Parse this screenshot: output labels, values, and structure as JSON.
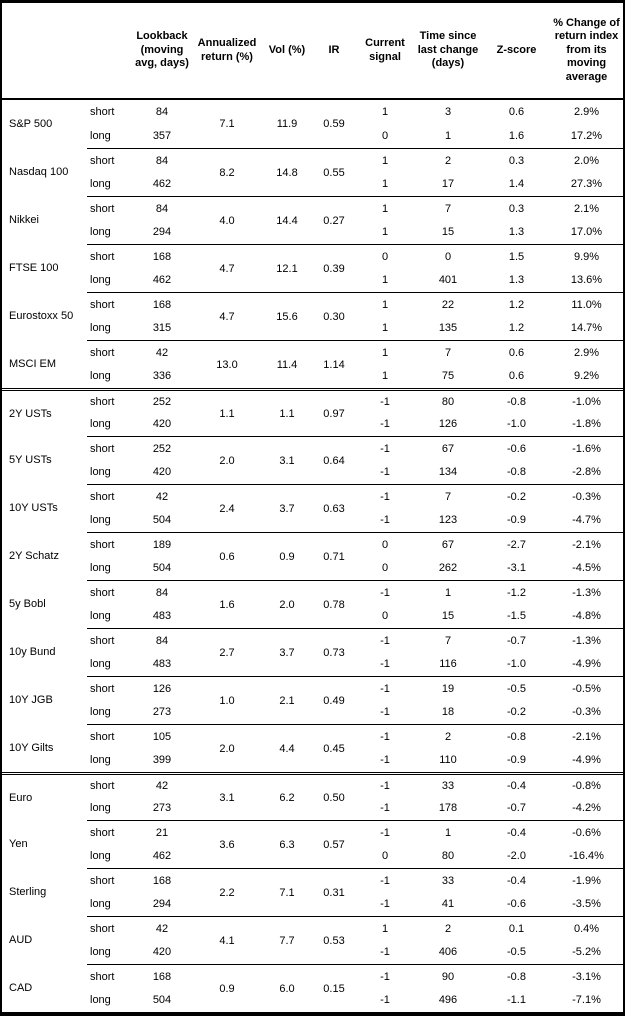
{
  "header": {
    "asset": "",
    "horizon": "",
    "lookback": "Lookback (moving avg, days)",
    "annualized_return": "Annualized return (%)",
    "vol": "Vol (%)",
    "ir": "IR",
    "current_signal": "Current signal",
    "time_since": "Time since last change (days)",
    "zscore": "Z-score",
    "pct_change": "% Change of return index from its moving average"
  },
  "sections": [
    {
      "id": "equities",
      "groups": [
        {
          "asset": "S&P 500",
          "annualized_return": "7.1",
          "vol": "11.9",
          "ir": "0.59",
          "rows": [
            {
              "horizon": "short",
              "lookback": "84",
              "signal": "1",
              "time_since": "3",
              "zscore": "0.6",
              "pct_change": "2.9%"
            },
            {
              "horizon": "long",
              "lookback": "357",
              "signal": "0",
              "time_since": "1",
              "zscore": "1.6",
              "pct_change": "17.2%"
            }
          ]
        },
        {
          "asset": "Nasdaq 100",
          "annualized_return": "8.2",
          "vol": "14.8",
          "ir": "0.55",
          "rows": [
            {
              "horizon": "short",
              "lookback": "84",
              "signal": "1",
              "time_since": "2",
              "zscore": "0.3",
              "pct_change": "2.0%"
            },
            {
              "horizon": "long",
              "lookback": "462",
              "signal": "1",
              "time_since": "17",
              "zscore": "1.4",
              "pct_change": "27.3%"
            }
          ]
        },
        {
          "asset": "Nikkei",
          "annualized_return": "4.0",
          "vol": "14.4",
          "ir": "0.27",
          "rows": [
            {
              "horizon": "short",
              "lookback": "84",
              "signal": "1",
              "time_since": "7",
              "zscore": "0.3",
              "pct_change": "2.1%"
            },
            {
              "horizon": "long",
              "lookback": "294",
              "signal": "1",
              "time_since": "15",
              "zscore": "1.3",
              "pct_change": "17.0%"
            }
          ]
        },
        {
          "asset": "FTSE 100",
          "annualized_return": "4.7",
          "vol": "12.1",
          "ir": "0.39",
          "rows": [
            {
              "horizon": "short",
              "lookback": "168",
              "signal": "0",
              "time_since": "0",
              "zscore": "1.5",
              "pct_change": "9.9%"
            },
            {
              "horizon": "long",
              "lookback": "462",
              "signal": "1",
              "time_since": "401",
              "zscore": "1.3",
              "pct_change": "13.6%"
            }
          ]
        },
        {
          "asset": "Eurostoxx 50",
          "annualized_return": "4.7",
          "vol": "15.6",
          "ir": "0.30",
          "rows": [
            {
              "horizon": "short",
              "lookback": "168",
              "signal": "1",
              "time_since": "22",
              "zscore": "1.2",
              "pct_change": "11.0%"
            },
            {
              "horizon": "long",
              "lookback": "315",
              "signal": "1",
              "time_since": "135",
              "zscore": "1.2",
              "pct_change": "14.7%"
            }
          ]
        },
        {
          "asset": "MSCI EM",
          "annualized_return": "13.0",
          "vol": "11.4",
          "ir": "1.14",
          "rows": [
            {
              "horizon": "short",
              "lookback": "42",
              "signal": "1",
              "time_since": "7",
              "zscore": "0.6",
              "pct_change": "2.9%"
            },
            {
              "horizon": "long",
              "lookback": "336",
              "signal": "1",
              "time_since": "75",
              "zscore": "0.6",
              "pct_change": "9.2%"
            }
          ]
        }
      ]
    },
    {
      "id": "rates",
      "groups": [
        {
          "asset": "2Y USTs",
          "annualized_return": "1.1",
          "vol": "1.1",
          "ir": "0.97",
          "rows": [
            {
              "horizon": "short",
              "lookback": "252",
              "signal": "-1",
              "time_since": "80",
              "zscore": "-0.8",
              "pct_change": "-1.0%"
            },
            {
              "horizon": "long",
              "lookback": "420",
              "signal": "-1",
              "time_since": "126",
              "zscore": "-1.0",
              "pct_change": "-1.8%"
            }
          ]
        },
        {
          "asset": "5Y USTs",
          "annualized_return": "2.0",
          "vol": "3.1",
          "ir": "0.64",
          "rows": [
            {
              "horizon": "short",
              "lookback": "252",
              "signal": "-1",
              "time_since": "67",
              "zscore": "-0.6",
              "pct_change": "-1.6%"
            },
            {
              "horizon": "long",
              "lookback": "420",
              "signal": "-1",
              "time_since": "134",
              "zscore": "-0.8",
              "pct_change": "-2.8%"
            }
          ]
        },
        {
          "asset": "10Y USTs",
          "annualized_return": "2.4",
          "vol": "3.7",
          "ir": "0.63",
          "rows": [
            {
              "horizon": "short",
              "lookback": "42",
              "signal": "-1",
              "time_since": "7",
              "zscore": "-0.2",
              "pct_change": "-0.3%"
            },
            {
              "horizon": "long",
              "lookback": "504",
              "signal": "-1",
              "time_since": "123",
              "zscore": "-0.9",
              "pct_change": "-4.7%"
            }
          ]
        },
        {
          "asset": "2Y Schatz",
          "annualized_return": "0.6",
          "vol": "0.9",
          "ir": "0.71",
          "rows": [
            {
              "horizon": "short",
              "lookback": "189",
              "signal": "0",
              "time_since": "67",
              "zscore": "-2.7",
              "pct_change": "-2.1%"
            },
            {
              "horizon": "long",
              "lookback": "504",
              "signal": "0",
              "time_since": "262",
              "zscore": "-3.1",
              "pct_change": "-4.5%"
            }
          ]
        },
        {
          "asset": "5y Bobl",
          "annualized_return": "1.6",
          "vol": "2.0",
          "ir": "0.78",
          "rows": [
            {
              "horizon": "short",
              "lookback": "84",
              "signal": "-1",
              "time_since": "1",
              "zscore": "-1.2",
              "pct_change": "-1.3%"
            },
            {
              "horizon": "long",
              "lookback": "483",
              "signal": "0",
              "time_since": "15",
              "zscore": "-1.5",
              "pct_change": "-4.8%"
            }
          ]
        },
        {
          "asset": "10y Bund",
          "annualized_return": "2.7",
          "vol": "3.7",
          "ir": "0.73",
          "rows": [
            {
              "horizon": "short",
              "lookback": "84",
              "signal": "-1",
              "time_since": "7",
              "zscore": "-0.7",
              "pct_change": "-1.3%"
            },
            {
              "horizon": "long",
              "lookback": "483",
              "signal": "-1",
              "time_since": "116",
              "zscore": "-1.0",
              "pct_change": "-4.9%"
            }
          ]
        },
        {
          "asset": "10Y JGB",
          "annualized_return": "1.0",
          "vol": "2.1",
          "ir": "0.49",
          "rows": [
            {
              "horizon": "short",
              "lookback": "126",
              "signal": "-1",
              "time_since": "19",
              "zscore": "-0.5",
              "pct_change": "-0.5%"
            },
            {
              "horizon": "long",
              "lookback": "273",
              "signal": "-1",
              "time_since": "18",
              "zscore": "-0.2",
              "pct_change": "-0.3%"
            }
          ]
        },
        {
          "asset": "10Y Gilts",
          "annualized_return": "2.0",
          "vol": "4.4",
          "ir": "0.45",
          "rows": [
            {
              "horizon": "short",
              "lookback": "105",
              "signal": "-1",
              "time_since": "2",
              "zscore": "-0.8",
              "pct_change": "-2.1%"
            },
            {
              "horizon": "long",
              "lookback": "399",
              "signal": "-1",
              "time_since": "110",
              "zscore": "-0.9",
              "pct_change": "-4.9%"
            }
          ]
        }
      ]
    },
    {
      "id": "fx",
      "groups": [
        {
          "asset": "Euro",
          "annualized_return": "3.1",
          "vol": "6.2",
          "ir": "0.50",
          "rows": [
            {
              "horizon": "short",
              "lookback": "42",
              "signal": "-1",
              "time_since": "33",
              "zscore": "-0.4",
              "pct_change": "-0.8%"
            },
            {
              "horizon": "long",
              "lookback": "273",
              "signal": "-1",
              "time_since": "178",
              "zscore": "-0.7",
              "pct_change": "-4.2%"
            }
          ]
        },
        {
          "asset": "Yen",
          "annualized_return": "3.6",
          "vol": "6.3",
          "ir": "0.57",
          "rows": [
            {
              "horizon": "short",
              "lookback": "21",
              "signal": "-1",
              "time_since": "1",
              "zscore": "-0.4",
              "pct_change": "-0.6%"
            },
            {
              "horizon": "long",
              "lookback": "462",
              "signal": "0",
              "time_since": "80",
              "zscore": "-2.0",
              "pct_change": "-16.4%"
            }
          ]
        },
        {
          "asset": "Sterling",
          "annualized_return": "2.2",
          "vol": "7.1",
          "ir": "0.31",
          "rows": [
            {
              "horizon": "short",
              "lookback": "168",
              "signal": "-1",
              "time_since": "33",
              "zscore": "-0.4",
              "pct_change": "-1.9%"
            },
            {
              "horizon": "long",
              "lookback": "294",
              "signal": "-1",
              "time_since": "41",
              "zscore": "-0.6",
              "pct_change": "-3.5%"
            }
          ]
        },
        {
          "asset": "AUD",
          "annualized_return": "4.1",
          "vol": "7.7",
          "ir": "0.53",
          "rows": [
            {
              "horizon": "short",
              "lookback": "42",
              "signal": "1",
              "time_since": "2",
              "zscore": "0.1",
              "pct_change": "0.4%"
            },
            {
              "horizon": "long",
              "lookback": "420",
              "signal": "-1",
              "time_since": "406",
              "zscore": "-0.5",
              "pct_change": "-5.2%"
            }
          ]
        },
        {
          "asset": "CAD",
          "annualized_return": "0.9",
          "vol": "6.0",
          "ir": "0.15",
          "rows": [
            {
              "horizon": "short",
              "lookback": "168",
              "signal": "-1",
              "time_since": "90",
              "zscore": "-0.8",
              "pct_change": "-3.1%"
            },
            {
              "horizon": "long",
              "lookback": "504",
              "signal": "-1",
              "time_since": "496",
              "zscore": "-1.1",
              "pct_change": "-7.1%"
            }
          ]
        }
      ]
    }
  ]
}
